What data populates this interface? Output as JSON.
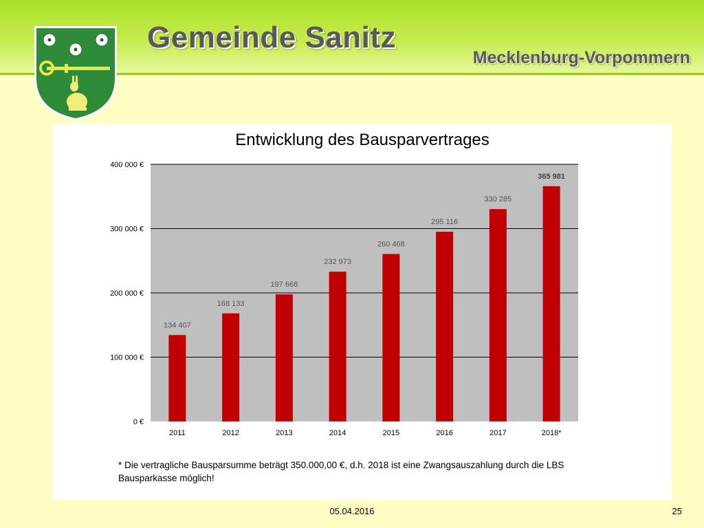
{
  "header": {
    "title": "Gemeinde Sanitz",
    "region": "Mecklenburg-Vorpommern"
  },
  "colors": {
    "header_green": "#a8e02a",
    "background": "#fdfdc4",
    "bar": "#c00000",
    "plot_area": "#bfbfbf"
  },
  "chart_data": {
    "type": "bar",
    "title": "Entwicklung des Bausparvertrages",
    "xlabel": "",
    "ylabel": "",
    "categories": [
      "2011",
      "2012",
      "2013",
      "2014",
      "2015",
      "2016",
      "2017",
      "2018*"
    ],
    "values": [
      134407,
      168133,
      197668,
      232973,
      260468,
      295116,
      330285,
      365981
    ],
    "value_labels": [
      "134 407",
      "168 133",
      "197 668",
      "232 973",
      "260 468",
      "295 116",
      "330 285",
      "365 981"
    ],
    "ylim": [
      0,
      400000
    ],
    "yticks": [
      0,
      100000,
      200000,
      300000,
      400000
    ],
    "ytick_labels": [
      "0 €",
      "100 000 €",
      "200 000 €",
      "300 000 €",
      "400 000 €"
    ],
    "grid": true,
    "legend": "none"
  },
  "footnote": "* Die vertragliche Bausparsumme beträgt 350.000,00 €, d.h. 2018 ist eine Zwangsauszahlung durch die LBS Bausparkasse möglich!",
  "footer": {
    "date": "05.04.2016",
    "slide_number": "25"
  }
}
